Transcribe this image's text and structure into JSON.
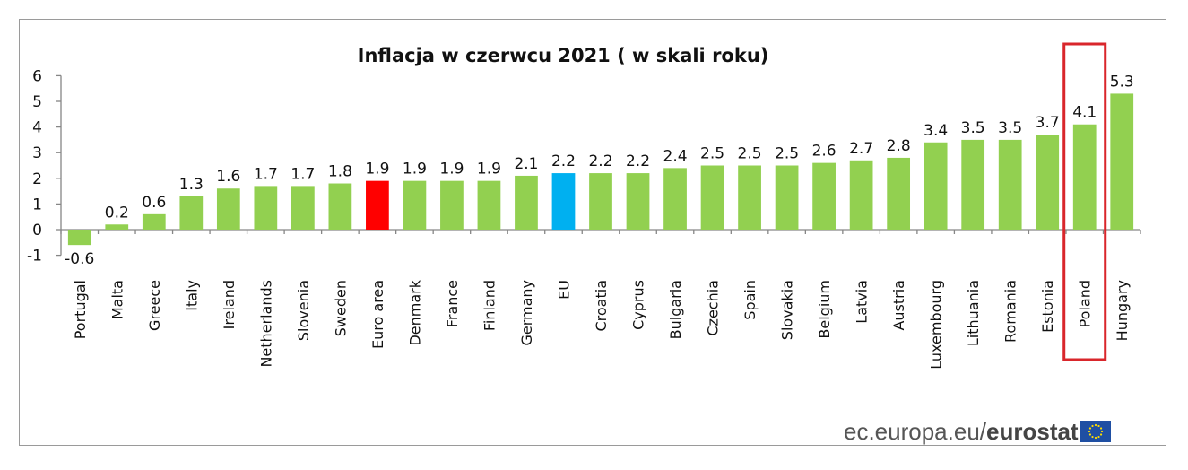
{
  "chart_data": {
    "type": "bar",
    "title": "Inflacja w czerwcu 2021 ( w skali roku)",
    "xlabel": "",
    "ylabel": "",
    "ylim": [
      -1,
      6
    ],
    "yticks": [
      "6",
      "5",
      "4",
      "3",
      "2",
      "1",
      "0",
      "-1"
    ],
    "categories": [
      "Portugal",
      "Malta",
      "Greece",
      "Italy",
      "Ireland",
      "Netherlands",
      "Slovenia",
      "Sweden",
      "Euro area",
      "Denmark",
      "France",
      "Finland",
      "Germany",
      "EU",
      "Croatia",
      "Cyprus",
      "Bulgaria",
      "Czechia",
      "Spain",
      "Slovakia",
      "Belgium",
      "Latvia",
      "Austria",
      "Luxembourg",
      "Lithuania",
      "Romania",
      "Estonia",
      "Poland",
      "Hungary"
    ],
    "values": [
      -0.6,
      0.2,
      0.6,
      1.3,
      1.6,
      1.7,
      1.7,
      1.8,
      1.9,
      1.9,
      1.9,
      1.9,
      2.1,
      2.2,
      2.2,
      2.2,
      2.4,
      2.5,
      2.5,
      2.5,
      2.6,
      2.7,
      2.8,
      3.4,
      3.5,
      3.5,
      3.7,
      4.1,
      5.3
    ],
    "value_labels": [
      "-0.6",
      "0.2",
      "0.6",
      "1.3",
      "1.6",
      "1.7",
      "1.7",
      "1.8",
      "1.9",
      "1.9",
      "1.9",
      "1.9",
      "2.1",
      "2.2",
      "2.2",
      "2.2",
      "2.4",
      "2.5",
      "2.5",
      "2.5",
      "2.6",
      "2.7",
      "2.8",
      "3.4",
      "3.5",
      "3.5",
      "3.7",
      "4.1",
      "5.3"
    ],
    "grid": false,
    "colors": {
      "default": "#92d050",
      "Euro area": "#ff0000",
      "EU": "#00b0f0",
      "highlight_box": "#d9262b"
    },
    "highlight": "Poland"
  },
  "footer": {
    "source_prefix": "ec.europa.eu/",
    "source_brand": "eurostat"
  }
}
